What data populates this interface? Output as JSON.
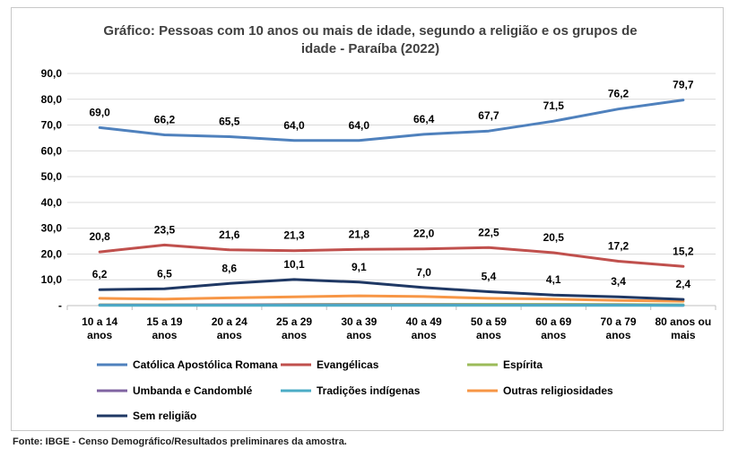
{
  "chart_data": {
    "type": "line",
    "title_line1": "Gráfico: Pessoas com 10 anos ou mais de idade, segundo a religião e os grupos de",
    "title_line2": "idade - Paraíba (2022)",
    "categories": [
      [
        "10 a 14",
        "anos"
      ],
      [
        "15 a 19",
        "anos"
      ],
      [
        "20 a 24",
        "anos"
      ],
      [
        "25 a 29",
        "anos"
      ],
      [
        "30 a 39",
        "anos"
      ],
      [
        "40 a 49",
        "anos"
      ],
      [
        "50 a 59",
        "anos"
      ],
      [
        "60 a 69",
        "anos"
      ],
      [
        "70 a 79",
        "anos"
      ],
      [
        "80 anos ou",
        "mais"
      ]
    ],
    "ylim": [
      0,
      90
    ],
    "yticks": [
      "-",
      "10,0",
      "20,0",
      "30,0",
      "40,0",
      "50,0",
      "60,0",
      "70,0",
      "80,0",
      "90,0"
    ],
    "grid": true,
    "legend_position": "bottom",
    "series": [
      {
        "name": "Católica Apostólica Romana",
        "color": "#4f81bd",
        "labeled": true,
        "values": [
          69.0,
          66.2,
          65.5,
          64.0,
          64.0,
          66.4,
          67.7,
          71.5,
          76.2,
          79.7
        ],
        "labels": [
          "69,0",
          "66,2",
          "65,5",
          "64,0",
          "64,0",
          "66,4",
          "67,7",
          "71,5",
          "76,2",
          "79,7"
        ]
      },
      {
        "name": "Evangélicas",
        "color": "#c0504d",
        "labeled": true,
        "values": [
          20.8,
          23.5,
          21.6,
          21.3,
          21.8,
          22.0,
          22.5,
          20.5,
          17.2,
          15.2
        ],
        "labels": [
          "20,8",
          "23,5",
          "21,6",
          "21,3",
          "21,8",
          "22,0",
          "22,5",
          "20,5",
          "17,2",
          "15,2"
        ]
      },
      {
        "name": "Espírita",
        "color": "#9bbb59",
        "labeled": false,
        "values": [
          0.3,
          0.3,
          0.3,
          0.4,
          0.5,
          0.5,
          0.5,
          0.5,
          0.4,
          0.3
        ]
      },
      {
        "name": "Umbanda e Candomblé",
        "color": "#8064a2",
        "labeled": false,
        "values": [
          0.2,
          0.2,
          0.3,
          0.3,
          0.3,
          0.3,
          0.2,
          0.2,
          0.2,
          0.1
        ]
      },
      {
        "name": "Tradições indígenas",
        "color": "#4bacc6",
        "labeled": false,
        "values": [
          0.1,
          0.1,
          0.1,
          0.1,
          0.1,
          0.1,
          0.1,
          0.1,
          0.1,
          0.1
        ]
      },
      {
        "name": "Outras religiosidades",
        "color": "#f79646",
        "labeled": false,
        "values": [
          2.8,
          2.5,
          3.0,
          3.4,
          3.8,
          3.5,
          2.8,
          2.5,
          2.0,
          1.7
        ]
      },
      {
        "name": "Sem religião",
        "color": "#1f3864",
        "labeled": true,
        "values": [
          6.2,
          6.5,
          8.6,
          10.1,
          9.1,
          7.0,
          5.4,
          4.1,
          3.4,
          2.4
        ],
        "labels": [
          "6,2",
          "6,5",
          "8,6",
          "10,1",
          "9,1",
          "7,0",
          "5,4",
          "4,1",
          "3,4",
          "2,4"
        ]
      }
    ]
  },
  "source": "Fonte: IBGE - Censo Demográfico/Resultados preliminares da amostra."
}
